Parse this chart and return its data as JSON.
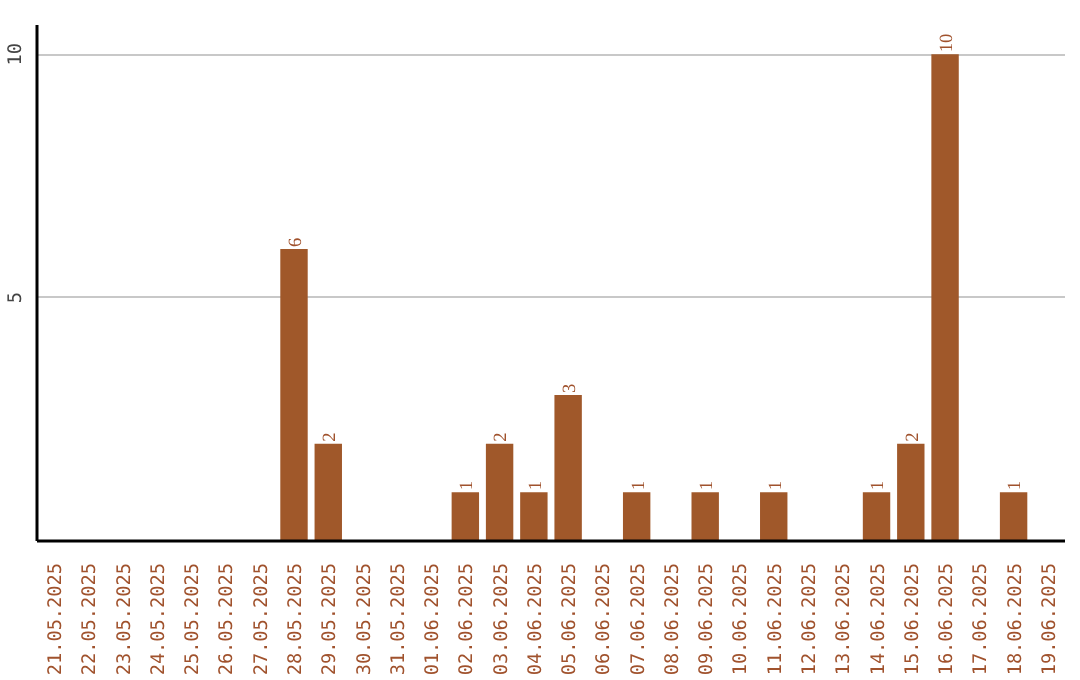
{
  "chart_data": {
    "type": "bar",
    "categories": [
      "21.05.2025",
      "22.05.2025",
      "23.05.2025",
      "24.05.2025",
      "25.05.2025",
      "26.05.2025",
      "27.05.2025",
      "28.05.2025",
      "29.05.2025",
      "30.05.2025",
      "31.05.2025",
      "01.06.2025",
      "02.06.2025",
      "03.06.2025",
      "04.06.2025",
      "05.06.2025",
      "06.06.2025",
      "07.06.2025",
      "08.06.2025",
      "09.06.2025",
      "10.06.2025",
      "11.06.2025",
      "12.06.2025",
      "13.06.2025",
      "14.06.2025",
      "15.06.2025",
      "16.06.2025",
      "17.06.2025",
      "18.06.2025",
      "19.06.2025"
    ],
    "values": [
      0,
      0,
      0,
      0,
      0,
      0,
      0,
      6,
      2,
      0,
      0,
      0,
      1,
      2,
      1,
      3,
      0,
      1,
      0,
      1,
      0,
      1,
      0,
      0,
      1,
      2,
      10,
      0,
      1,
      0
    ],
    "value_labels": [
      null,
      null,
      null,
      null,
      null,
      null,
      null,
      "6",
      "2",
      null,
      null,
      null,
      "1",
      "2",
      "1",
      "3",
      null,
      "1",
      null,
      "1",
      null,
      "1",
      null,
      null,
      "1",
      "2",
      "10",
      null,
      "1",
      null
    ],
    "color": "#a0582a",
    "ylim": [
      0,
      10.6
    ],
    "yticks": [
      5,
      10
    ],
    "grid": "y"
  }
}
